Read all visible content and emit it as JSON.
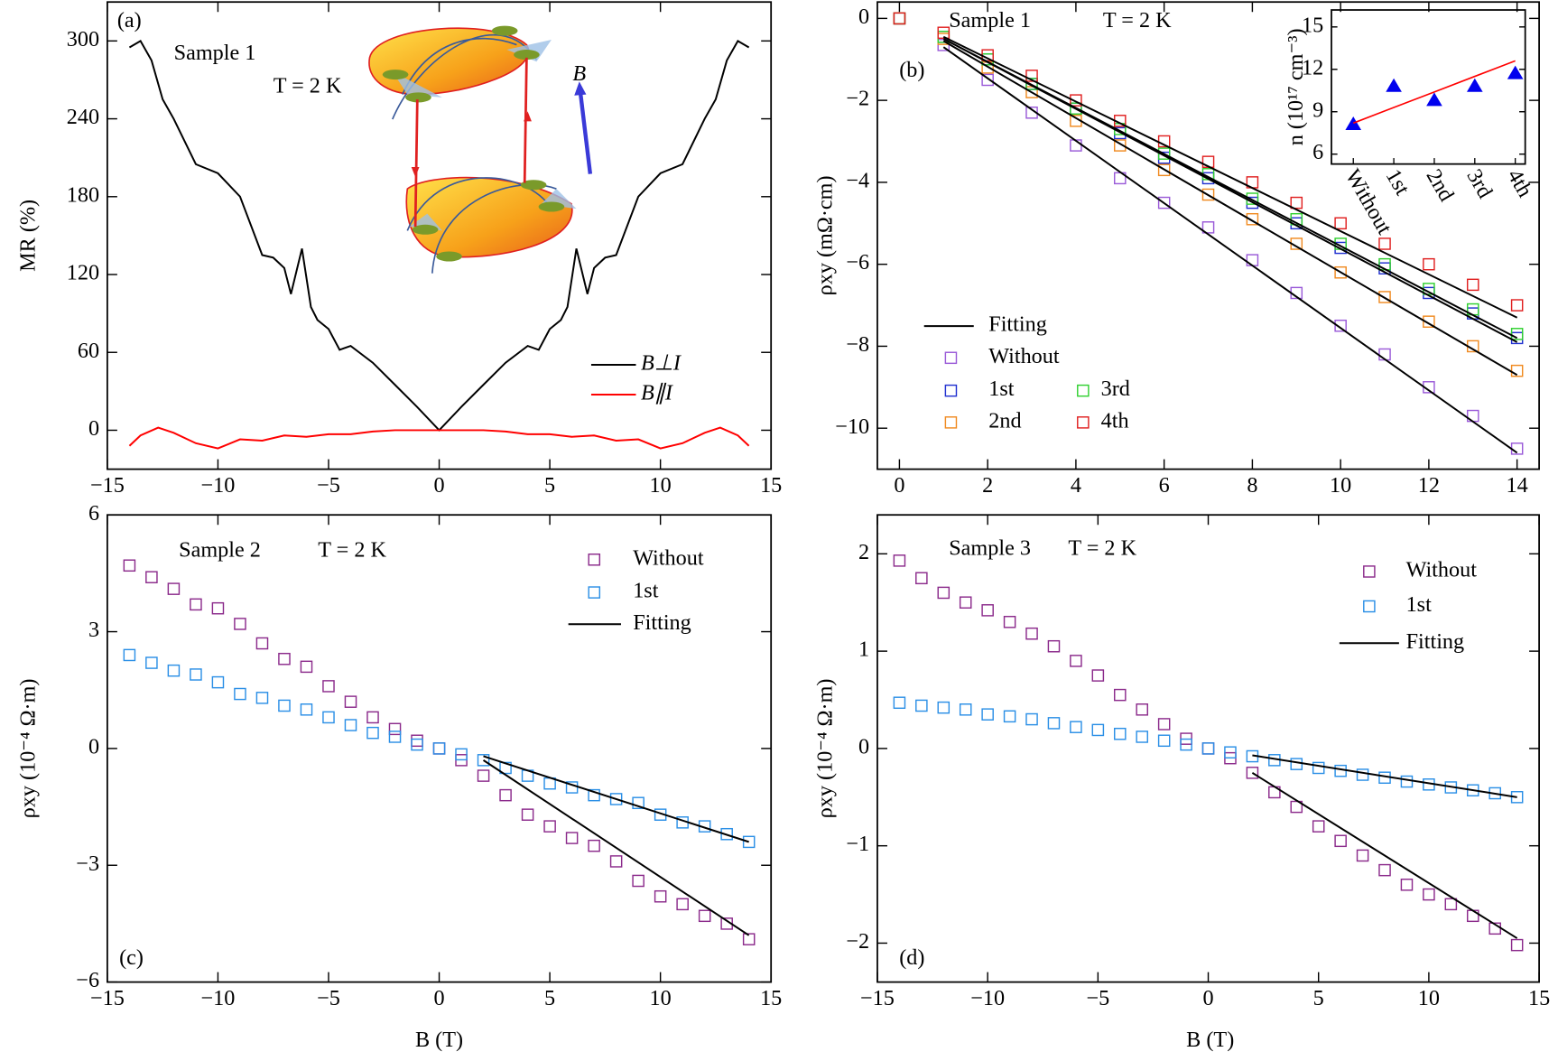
{
  "chart_data": [
    {
      "type": "line",
      "panel_label": "(a)",
      "annotations": [
        "Sample 1",
        "T = 2 K"
      ],
      "inset_label": "B",
      "ylabel": "MR (%)",
      "xlim": [
        -15,
        15
      ],
      "xticks": [
        {
          "value": -15,
          "label": "−15"
        },
        {
          "value": -10,
          "label": "−10"
        },
        {
          "value": -5,
          "label": "−5"
        },
        0,
        5,
        10,
        15
      ],
      "ylim": [
        -30,
        330
      ],
      "yticks": [
        0,
        60,
        120,
        180,
        240,
        300
      ],
      "legend": "lower right",
      "series": [
        {
          "name": "B⊥I",
          "color": "#000000",
          "style": "line",
          "x": [
            -14,
            -13.5,
            -13,
            -12.5,
            -12,
            -11,
            -10,
            -9,
            -8,
            -7.5,
            -7,
            -6.7,
            -6.2,
            -5.8,
            -5.5,
            -5,
            -4.5,
            -4,
            -3,
            -2,
            -1,
            0,
            1,
            2,
            3,
            4,
            4.5,
            5,
            5.5,
            5.8,
            6.2,
            6.7,
            7,
            7.5,
            8,
            9,
            10,
            11,
            12,
            12.5,
            13,
            13.5,
            14
          ],
          "values": [
            295,
            300,
            285,
            255,
            240,
            205,
            198,
            180,
            135,
            133,
            125,
            105,
            140,
            95,
            85,
            78,
            62,
            65,
            52,
            35,
            18,
            0,
            18,
            35,
            52,
            65,
            62,
            78,
            85,
            95,
            140,
            105,
            125,
            133,
            135,
            180,
            198,
            205,
            240,
            255,
            285,
            300,
            295
          ]
        },
        {
          "name": "B∥I",
          "color": "#ff0000",
          "style": "line",
          "x": [
            -14,
            -13.5,
            -12.7,
            -12,
            -11,
            -10,
            -9,
            -8,
            -7,
            -6,
            -5,
            -4,
            -3,
            -2,
            -1,
            0,
            1,
            2,
            3,
            4,
            5,
            6,
            7,
            8,
            9,
            10,
            11,
            12,
            12.7,
            13.5,
            14
          ],
          "values": [
            -12,
            -4,
            2,
            -2,
            -10,
            -14,
            -7,
            -8,
            -4,
            -5,
            -3,
            -3,
            -1,
            0,
            0,
            0,
            0,
            0,
            -1,
            -3,
            -3,
            -5,
            -4,
            -8,
            -7,
            -14,
            -10,
            -2,
            2,
            -4,
            -12
          ]
        }
      ]
    },
    {
      "type": "scatter",
      "panel_label": "(b)",
      "annotations": [
        "Sample 1",
        "T = 2 K"
      ],
      "ylabel": "ρxy (mΩ·cm)",
      "xlim": [
        -0.5,
        14.5
      ],
      "xticks": [
        0,
        2,
        4,
        6,
        8,
        10,
        12,
        14
      ],
      "ylim": [
        -11,
        0.4
      ],
      "yticks": [
        0,
        {
          "value": -2,
          "label": "−2"
        },
        {
          "value": -4,
          "label": "−4"
        },
        {
          "value": -6,
          "label": "−6"
        },
        {
          "value": -8,
          "label": "−8"
        },
        {
          "value": -10,
          "label": "−10"
        }
      ],
      "legend": "lower left",
      "series": [
        {
          "name": "Fitting",
          "color": "#000000",
          "style": "line",
          "x": [
            1,
            14,
            null,
            1,
            14,
            null,
            1,
            14,
            null,
            1,
            14,
            null,
            1,
            14
          ],
          "values": [
            -0.7,
            -10.6,
            null,
            -0.55,
            -8.7,
            null,
            -0.5,
            -7.9,
            null,
            -0.5,
            -7.8,
            null,
            -0.45,
            -7.3
          ]
        },
        {
          "name": "Without",
          "color": "#9a5ad8",
          "style": "square",
          "x": [
            0,
            1,
            2,
            3,
            4,
            5,
            6,
            7,
            8,
            9,
            10,
            11,
            12,
            13,
            14
          ],
          "values": [
            0,
            -0.65,
            -1.5,
            -2.3,
            -3.1,
            -3.9,
            -4.5,
            -5.1,
            -5.9,
            -6.7,
            -7.5,
            -8.2,
            -9.0,
            -9.7,
            -10.5
          ]
        },
        {
          "name": "1st",
          "color": "#2030d0",
          "style": "square",
          "x": [
            0,
            1,
            2,
            3,
            4,
            5,
            6,
            7,
            8,
            9,
            10,
            11,
            12,
            13,
            14
          ],
          "values": [
            0,
            -0.45,
            -1.0,
            -1.6,
            -2.2,
            -2.8,
            -3.4,
            -3.9,
            -4.5,
            -5.0,
            -5.6,
            -6.1,
            -6.7,
            -7.2,
            -7.8
          ]
        },
        {
          "name": "2nd",
          "color": "#f08a20",
          "style": "square",
          "x": [
            0,
            1,
            2,
            3,
            4,
            5,
            6,
            7,
            8,
            9,
            10,
            11,
            12,
            13,
            14
          ],
          "values": [
            0,
            -0.5,
            -1.2,
            -1.8,
            -2.5,
            -3.1,
            -3.7,
            -4.3,
            -4.9,
            -5.5,
            -6.2,
            -6.8,
            -7.4,
            -8.0,
            -8.6
          ]
        },
        {
          "name": "3rd",
          "color": "#30d030",
          "style": "square",
          "x": [
            0,
            1,
            2,
            3,
            4,
            5,
            6,
            7,
            8,
            9,
            10,
            11,
            12,
            13,
            14
          ],
          "values": [
            0,
            -0.45,
            -1.0,
            -1.6,
            -2.2,
            -2.7,
            -3.3,
            -3.8,
            -4.4,
            -4.9,
            -5.5,
            -6.0,
            -6.6,
            -7.1,
            -7.7
          ]
        },
        {
          "name": "4th",
          "color": "#e02020",
          "style": "square",
          "x": [
            0,
            1,
            2,
            3,
            4,
            5,
            6,
            7,
            8,
            9,
            10,
            11,
            12,
            13,
            14
          ],
          "values": [
            0,
            -0.35,
            -0.9,
            -1.4,
            -2.0,
            -2.5,
            -3.0,
            -3.5,
            -4.0,
            -4.5,
            -5.0,
            -5.5,
            -6.0,
            -6.5,
            -7.0
          ]
        }
      ]
    },
    {
      "type": "category",
      "ylabel": "n (10¹⁷ cm⁻³)",
      "categories": [
        "Without",
        "1st",
        "2nd",
        "3rd",
        "4th"
      ],
      "ylim": [
        5.3,
        16.2
      ],
      "yticks": [
        6,
        9,
        12,
        15
      ],
      "series": [
        {
          "color": "#ff0000",
          "style": "line",
          "values": [
            8.2,
            9.3,
            10.4,
            11.5,
            12.6
          ]
        },
        {
          "color": "#0000ee",
          "style": "triangle",
          "values": [
            8.1,
            10.8,
            9.8,
            10.8,
            11.7
          ]
        }
      ]
    },
    {
      "type": "scatter",
      "panel_label": "(c)",
      "annotations": [
        "Sample 2",
        "T = 2 K"
      ],
      "ylabel": "ρxy (10⁻⁴ Ω·m)",
      "xlabel": "B (T)",
      "xlim": [
        -15,
        15
      ],
      "xticks": [
        {
          "value": -15,
          "label": "−15"
        },
        {
          "value": -10,
          "label": "−10"
        },
        {
          "value": -5,
          "label": "−5"
        },
        0,
        5,
        10,
        15
      ],
      "ylim": [
        -6,
        6
      ],
      "yticks": [
        {
          "value": -6,
          "label": "−6"
        },
        {
          "value": -3,
          "label": "−3"
        },
        0,
        3,
        6
      ],
      "legend": "upper right",
      "series": [
        {
          "name": "Without",
          "color": "#8b2a8b",
          "style": "square",
          "x": [
            -14,
            -13,
            -12,
            -11,
            -10,
            -9,
            -8,
            -7,
            -6,
            -5,
            -4,
            -3,
            -2,
            -1,
            0,
            1,
            2,
            3,
            4,
            5,
            6,
            7,
            8,
            9,
            10,
            11,
            12,
            13,
            14
          ],
          "values": [
            4.7,
            4.4,
            4.1,
            3.7,
            3.6,
            3.2,
            2.7,
            2.3,
            2.1,
            1.6,
            1.2,
            0.8,
            0.5,
            0.2,
            0,
            -0.3,
            -0.7,
            -1.2,
            -1.7,
            -2.0,
            -2.3,
            -2.5,
            -2.9,
            -3.4,
            -3.8,
            -4.0,
            -4.3,
            -4.5,
            -4.9
          ]
        },
        {
          "name": "1st",
          "color": "#2b8fe6",
          "style": "square",
          "x": [
            -14,
            -13,
            -12,
            -11,
            -10,
            -9,
            -8,
            -7,
            -6,
            -5,
            -4,
            -3,
            -2,
            -1,
            0,
            1,
            2,
            3,
            4,
            5,
            6,
            7,
            8,
            9,
            10,
            11,
            12,
            13,
            14
          ],
          "values": [
            2.4,
            2.2,
            2.0,
            1.9,
            1.7,
            1.4,
            1.3,
            1.1,
            1.0,
            0.8,
            0.6,
            0.4,
            0.3,
            0.1,
            0,
            -0.15,
            -0.3,
            -0.5,
            -0.7,
            -0.9,
            -1.0,
            -1.2,
            -1.3,
            -1.4,
            -1.7,
            -1.9,
            -2.0,
            -2.2,
            -2.4
          ]
        },
        {
          "name": "Fitting",
          "color": "#000000",
          "style": "line",
          "x": [
            2,
            14,
            null,
            2,
            14
          ],
          "values": [
            -0.3,
            -4.8,
            null,
            -0.2,
            -2.4
          ]
        }
      ]
    },
    {
      "type": "scatter",
      "panel_label": "(d)",
      "annotations": [
        "Sample 3",
        "T = 2 K"
      ],
      "ylabel": "ρxy (10⁻⁴ Ω·m)",
      "xlabel": "B (T)",
      "xlim": [
        -15,
        15
      ],
      "xticks": [
        {
          "value": -15,
          "label": "−15"
        },
        {
          "value": -10,
          "label": "−10"
        },
        {
          "value": -5,
          "label": "−5"
        },
        0,
        5,
        10,
        15
      ],
      "ylim": [
        -2.4,
        2.4
      ],
      "yticks": [
        {
          "value": -2,
          "label": "−2"
        },
        {
          "value": -1,
          "label": "−1"
        },
        0,
        1,
        2
      ],
      "legend": "upper right",
      "series": [
        {
          "name": "Without",
          "color": "#8b2a8b",
          "style": "square",
          "x": [
            -14,
            -13,
            -12,
            -11,
            -10,
            -9,
            -8,
            -7,
            -6,
            -5,
            -4,
            -3,
            -2,
            -1,
            0,
            1,
            2,
            3,
            4,
            5,
            6,
            7,
            8,
            9,
            10,
            11,
            12,
            13,
            14
          ],
          "values": [
            1.93,
            1.75,
            1.6,
            1.5,
            1.42,
            1.3,
            1.18,
            1.05,
            0.9,
            0.75,
            0.55,
            0.4,
            0.25,
            0.1,
            0,
            -0.1,
            -0.25,
            -0.45,
            -0.6,
            -0.8,
            -0.95,
            -1.1,
            -1.25,
            -1.4,
            -1.5,
            -1.6,
            -1.72,
            -1.85,
            -2.02
          ]
        },
        {
          "name": "1st",
          "color": "#2b8fe6",
          "style": "square",
          "x": [
            -14,
            -13,
            -12,
            -11,
            -10,
            -9,
            -8,
            -7,
            -6,
            -5,
            -4,
            -3,
            -2,
            -1,
            0,
            1,
            2,
            3,
            4,
            5,
            6,
            7,
            8,
            9,
            10,
            11,
            12,
            13,
            14
          ],
          "values": [
            0.47,
            0.44,
            0.42,
            0.4,
            0.35,
            0.33,
            0.3,
            0.26,
            0.22,
            0.19,
            0.15,
            0.12,
            0.08,
            0.04,
            0,
            -0.04,
            -0.08,
            -0.12,
            -0.16,
            -0.2,
            -0.23,
            -0.27,
            -0.3,
            -0.34,
            -0.37,
            -0.4,
            -0.43,
            -0.46,
            -0.5
          ]
        },
        {
          "name": "Fitting",
          "color": "#000000",
          "style": "line",
          "x": [
            2,
            14,
            null,
            2,
            14
          ],
          "values": [
            -0.25,
            -1.95,
            null,
            -0.07,
            -0.5
          ]
        }
      ]
    }
  ]
}
